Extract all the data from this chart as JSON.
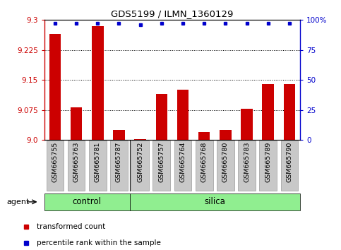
{
  "title": "GDS5199 / ILMN_1360129",
  "samples": [
    "GSM665755",
    "GSM665763",
    "GSM665781",
    "GSM665787",
    "GSM665752",
    "GSM665757",
    "GSM665764",
    "GSM665768",
    "GSM665780",
    "GSM665783",
    "GSM665789",
    "GSM665790"
  ],
  "red_values": [
    9.265,
    9.082,
    9.285,
    9.025,
    9.002,
    9.115,
    9.125,
    9.02,
    9.025,
    9.078,
    9.14,
    9.14
  ],
  "blue_values": [
    97,
    97,
    97,
    97,
    96,
    97,
    97,
    97,
    97,
    97,
    97,
    97
  ],
  "ylim_left": [
    9.0,
    9.3
  ],
  "ylim_right": [
    0,
    100
  ],
  "yticks_left": [
    9.0,
    9.075,
    9.15,
    9.225,
    9.3
  ],
  "yticks_right": [
    0,
    25,
    50,
    75,
    100
  ],
  "control_count": 4,
  "silica_count": 8,
  "bar_color": "#CC0000",
  "dot_color": "#0000CC",
  "green_color": "#90EE90",
  "bg_color": "#C8C8C8",
  "legend_red": "transformed count",
  "legend_blue": "percentile rank within the sample",
  "agent_label": "agent",
  "control_label": "control",
  "silica_label": "silica"
}
